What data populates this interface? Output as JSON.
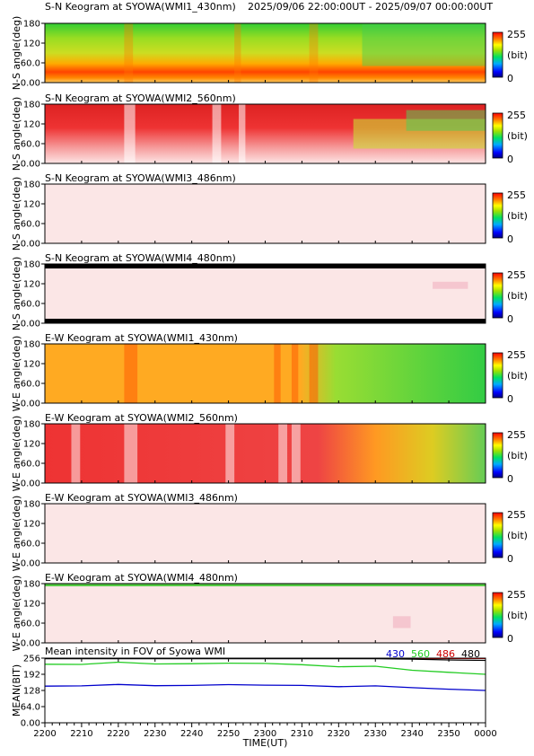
{
  "header": {
    "time_range": "2025/09/06 22:00:00UT - 2025/09/07 00:00:00UT"
  },
  "colorbar": {
    "max_label": "255",
    "unit_label": "(bit)",
    "min_label": "0"
  },
  "chart_data": [
    {
      "type": "heatmap",
      "title": "S-N Keogram at SYOWA(WMI1_430nm)",
      "ylabel": "N-S angle(deg)",
      "yticks": [
        "180",
        "120",
        "60.0",
        "0.00"
      ],
      "ylim": [
        0,
        180
      ],
      "clim": [
        0,
        255
      ],
      "colormap": "rainbow",
      "appearance": "green-yellow upper field with a bright orange/red auroral band near 20-60 deg; band weakens toward 2340-0000 UT"
    },
    {
      "type": "heatmap",
      "title": "S-N Keogram at SYOWA(WMI2_560nm)",
      "ylabel": "N-S angle(deg)",
      "yticks": [
        "180",
        "120",
        "60.0",
        "0.00"
      ],
      "ylim": [
        0,
        180
      ],
      "clim": [
        0,
        255
      ],
      "colormap": "rainbow",
      "appearance": "red saturated field with bright white streaks near 2223 and 2240 UT; green/yellow patches appear from 2320 UT onward in the upper half"
    },
    {
      "type": "heatmap",
      "title": "S-N Keogram at SYOWA(WMI3_486nm)",
      "ylabel": "N-S angle(deg)",
      "yticks": [
        "180",
        "120",
        "60.0",
        "0.00"
      ],
      "ylim": [
        0,
        180
      ],
      "clim": [
        0,
        255
      ],
      "colormap": "rainbow",
      "appearance": "nearly uniform pale pink (saturated) field"
    },
    {
      "type": "heatmap",
      "title": "S-N Keogram at SYOWA(WMI4_480nm)",
      "ylabel": "N-S angle(deg)",
      "yticks": [
        "180",
        "120",
        "60.0",
        "0.00"
      ],
      "ylim": [
        0,
        180
      ],
      "clim": [
        0,
        255
      ],
      "colormap": "rainbow",
      "appearance": "pale pink field with black borders at top and bottom; faint pink streaks after 2330 UT"
    },
    {
      "type": "heatmap",
      "title": "E-W Keogram at SYOWA(WMI1_430nm)",
      "ylabel": "W-E angle(deg)",
      "yticks": [
        "180",
        "120",
        "60.0",
        "0.00"
      ],
      "ylim": [
        0,
        180
      ],
      "clim": [
        0,
        255
      ],
      "colormap": "rainbow",
      "appearance": "orange diagonal striations from 2200 to 2315 UT with strong vertical bands near 2223 and 2300-2313 UT; green field from 2325 UT onward"
    },
    {
      "type": "heatmap",
      "title": "E-W Keogram at SYOWA(WMI2_560nm)",
      "ylabel": "W-E angle(deg)",
      "yticks": [
        "180",
        "120",
        "60.0",
        "0.00"
      ],
      "ylim": [
        0,
        180
      ],
      "clim": [
        0,
        255
      ],
      "colormap": "rainbow",
      "appearance": "red field with white vertical streaks and diagonal red striations; orange/yellow/green arcs from 2330 UT onward"
    },
    {
      "type": "heatmap",
      "title": "E-W Keogram at SYOWA(WMI3_486nm)",
      "ylabel": "W-E angle(deg)",
      "yticks": [
        "180",
        "120",
        "60.0",
        "0.00"
      ],
      "ylim": [
        0,
        180
      ],
      "clim": [
        0,
        255
      ],
      "colormap": "rainbow",
      "appearance": "nearly uniform pale pink field"
    },
    {
      "type": "heatmap",
      "title": "E-W Keogram at SYOWA(WMI4_480nm)",
      "ylabel": "W-E angle(deg)",
      "yticks": [
        "180",
        "120",
        "60.0",
        "0.00"
      ],
      "ylim": [
        0,
        180
      ],
      "clim": [
        0,
        255
      ],
      "colormap": "rainbow",
      "appearance": "pale pink field with a green border line along the top; faint pink streaks after 2330 UT"
    },
    {
      "type": "line",
      "title": "Mean intensity in FOV of Syowa WMI",
      "ylabel": "MEAN(BIT)",
      "xlabel": "TIME(UT)",
      "yticks": [
        "256",
        "192",
        "128",
        "64.0",
        "0.00"
      ],
      "ylim": [
        0,
        256
      ],
      "x": [
        "2200",
        "2210",
        "2220",
        "2230",
        "2240",
        "2250",
        "2300",
        "2310",
        "2320",
        "2330",
        "2340",
        "2350",
        "0000"
      ],
      "series": [
        {
          "name": "430",
          "color": "#0000cc",
          "values": [
            145,
            146,
            152,
            147,
            148,
            151,
            149,
            148,
            143,
            146,
            139,
            133,
            128
          ]
        },
        {
          "name": "560",
          "color": "#22cc22",
          "values": [
            232,
            231,
            240,
            233,
            234,
            236,
            235,
            230,
            222,
            224,
            208,
            200,
            192
          ]
        },
        {
          "name": "486",
          "color": "#cc0000",
          "values": [
            255,
            255,
            255,
            255,
            255,
            255,
            255,
            255,
            255,
            255,
            255,
            255,
            255
          ]
        },
        {
          "name": "480",
          "color": "#000000",
          "values": [
            254,
            254,
            254,
            254,
            254,
            254,
            254,
            254,
            254,
            254,
            252,
            249,
            247
          ]
        }
      ]
    }
  ]
}
